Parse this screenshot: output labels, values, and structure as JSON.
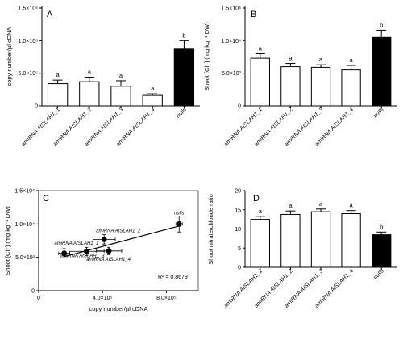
{
  "figure": {
    "panels": [
      {
        "id": "A",
        "letter": "A",
        "ylabel": "copy number/µl cDNA",
        "yticks": [
          {
            "value": 0,
            "label": "0"
          },
          {
            "value": 500000,
            "label": "5.0×10⁵"
          },
          {
            "value": 1000000,
            "label": "1.0×10⁶"
          },
          {
            "value": 1500000,
            "label": "1.5×10⁶"
          }
        ]
      },
      {
        "id": "B",
        "letter": "B",
        "ylabel": "Shoot [Cl⁻] (mg kg⁻¹ DW)",
        "yticks": [
          {
            "value": 0,
            "label": "0"
          },
          {
            "value": 5000,
            "label": "5.0×10³"
          },
          {
            "value": 10000,
            "label": "1.0×10⁴"
          },
          {
            "value": 15000,
            "label": "1.5×10⁴"
          }
        ]
      },
      {
        "id": "C",
        "letter": "C",
        "ylabel": "Shoot [Cl⁻] (mg kg⁻¹ DW)",
        "xlabel": "copy number/µl cDNA",
        "yticks": [
          {
            "value": 0,
            "label": "0"
          },
          {
            "value": 5000,
            "label": "5.0×10³"
          },
          {
            "value": 10000,
            "label": "1.0×10⁴"
          },
          {
            "value": 15000,
            "label": "1.5×10⁴"
          }
        ],
        "xticks": [
          {
            "value": 0,
            "label": "0"
          },
          {
            "value": 400000,
            "label": "4.0×10⁵"
          },
          {
            "value": 800000,
            "label": "8.0×10⁵"
          }
        ],
        "r2": "R² = 0.8679"
      },
      {
        "id": "D",
        "letter": "D",
        "ylabel": "Shoot nitrate/chloride ratio",
        "yticks": [
          {
            "value": 0,
            "label": "0"
          },
          {
            "value": 5,
            "label": "5"
          },
          {
            "value": 10,
            "label": "10"
          },
          {
            "value": 15,
            "label": "15"
          },
          {
            "value": 20,
            "label": "20"
          }
        ]
      }
    ]
  },
  "colors": {
    "bar_default": "#ffffff",
    "bar_highlight": "#000000",
    "axis": "#000000"
  },
  "chart_data": [
    {
      "panel": "A",
      "type": "bar",
      "categories": [
        "amiRNA AtSLAH1_1",
        "amiRNA AtSLAH1_2",
        "amiRNA AtSLAH1_3",
        "amiRNA AtSLAH1_4",
        "nulls"
      ],
      "values": [
        340000,
        370000,
        300000,
        160000,
        870000
      ],
      "errors": [
        55000,
        70000,
        85000,
        25000,
        130000
      ],
      "letters": [
        "a",
        "a",
        "a",
        "a",
        "b"
      ],
      "highlight": [
        false,
        false,
        false,
        false,
        true
      ],
      "ylim": [
        0,
        1500000
      ],
      "ylabel": "copy number/µl cDNA"
    },
    {
      "panel": "B",
      "type": "bar",
      "categories": [
        "amiRNA AtSLAH1_1",
        "amiRNA AtSLAH1_2",
        "amiRNA AtSLAH1_3",
        "amiRNA AtSLAH1_4",
        "nulls"
      ],
      "values": [
        7300,
        6000,
        5900,
        5500,
        10500
      ],
      "errors": [
        700,
        500,
        400,
        700,
        1100
      ],
      "letters": [
        "a",
        "a",
        "a",
        "a",
        "b"
      ],
      "highlight": [
        false,
        false,
        false,
        false,
        true
      ],
      "ylim": [
        0,
        15000
      ],
      "ylabel": "Shoot [Cl⁻] (mg kg⁻¹ DW)"
    },
    {
      "panel": "C",
      "type": "scatter",
      "points": [
        {
          "label": "amiRNA AtSLAH1_1",
          "x": 300000,
          "y": 5900,
          "xerr": 110000,
          "yerr": 600
        },
        {
          "label": "amiRNA AtSLAH1_2",
          "x": 410000,
          "y": 7700,
          "xerr": 70000,
          "yerr": 700
        },
        {
          "label": "amiRNA AtSLAH1_3",
          "x": 160000,
          "y": 5600,
          "xerr": 35000,
          "yerr": 700
        },
        {
          "label": "amiRNA AtSLAH1_4",
          "x": 440000,
          "y": 5950,
          "xerr": 80000,
          "yerr": 550
        },
        {
          "label": "nulls",
          "x": 880000,
          "y": 10000,
          "xerr": 20000,
          "yerr": 1200
        }
      ],
      "trendline": {
        "x": [
          160000,
          880000
        ],
        "y": [
          5100,
          9700
        ]
      },
      "xlim": [
        0,
        1000000
      ],
      "ylim": [
        0,
        15000
      ],
      "xlabel": "copy number/µl cDNA",
      "ylabel": "Shoot [Cl⁻] (mg kg⁻¹ DW)",
      "annotation": "R² = 0.8679"
    },
    {
      "panel": "D",
      "type": "bar",
      "categories": [
        "amiRNA AtSLAH1_1",
        "amiRNA AtSLAH1_2",
        "amiRNA AtSLAH1_3",
        "amiRNA AtSLAH1_4",
        "nulls"
      ],
      "values": [
        12.5,
        13.8,
        14.5,
        14.0,
        8.5
      ],
      "errors": [
        0.8,
        0.9,
        0.7,
        0.8,
        0.7
      ],
      "letters": [
        "a",
        "a",
        "a",
        "a",
        "b"
      ],
      "highlight": [
        false,
        false,
        false,
        false,
        true
      ],
      "ylim": [
        0,
        20
      ],
      "ylabel": "Shoot nitrate/chloride ratio"
    }
  ]
}
